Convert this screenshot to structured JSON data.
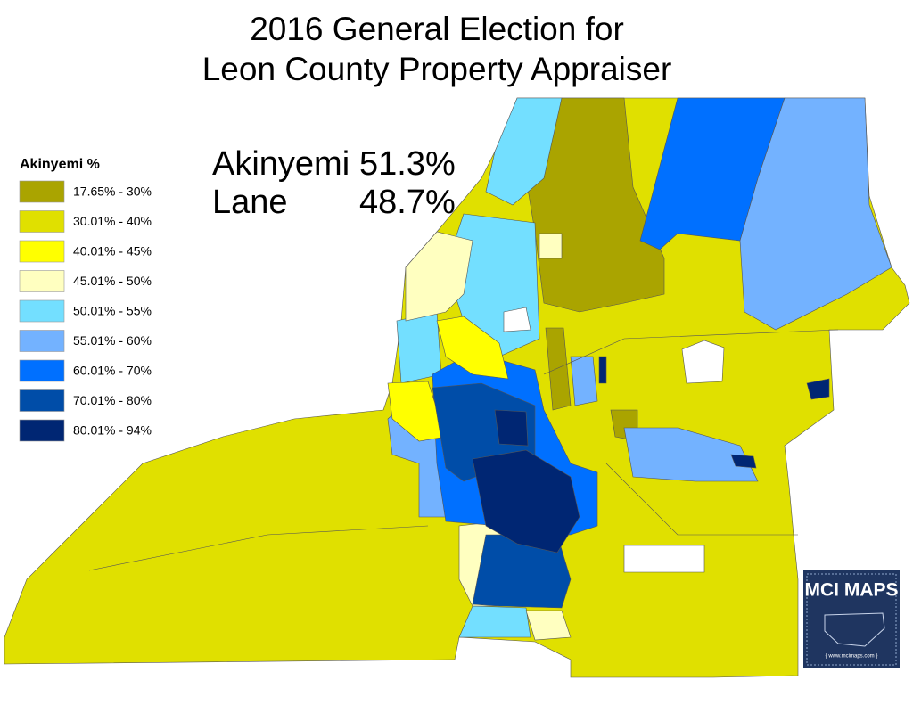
{
  "header": {
    "title_lines": [
      "2016 General Election for",
      "Leon County Property Appraiser"
    ]
  },
  "legend": {
    "title": "Akinyemi %",
    "items": [
      {
        "label": "17.65% - 30%",
        "color": "#aaa400"
      },
      {
        "label": "30.01% - 40%",
        "color": "#e0e000"
      },
      {
        "label": "40.01% - 45%",
        "color": "#ffff00"
      },
      {
        "label": "45.01% - 50%",
        "color": "#ffffc0"
      },
      {
        "label": "50.01% - 55%",
        "color": "#73dfff"
      },
      {
        "label": "55.01% - 60%",
        "color": "#73b2ff"
      },
      {
        "label": "60.01% - 70%",
        "color": "#0070ff"
      },
      {
        "label": "70.01% - 80%",
        "color": "#004da8"
      },
      {
        "label": "80.01% - 94%",
        "color": "#002673"
      }
    ]
  },
  "results": [
    {
      "name": "Akinyemi",
      "share": "51.3%"
    },
    {
      "name": "Lane",
      "share": "48.7%"
    }
  ],
  "logo": {
    "title": "MCI MAPS",
    "url": "{ www.mcimaps.com }"
  }
}
